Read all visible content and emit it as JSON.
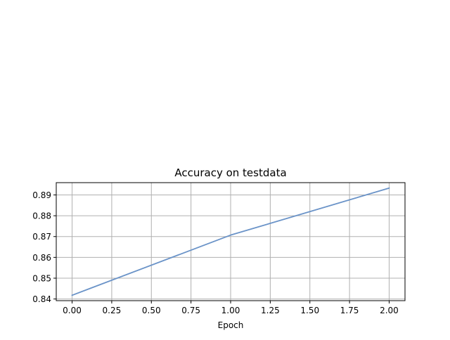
{
  "chart_data": {
    "type": "line",
    "title": "Accuracy on testdata",
    "xlabel": "Epoch",
    "ylabel": "",
    "x": [
      0,
      1,
      2
    ],
    "series": [
      {
        "values": [
          0.8418,
          0.8707,
          0.8933
        ]
      }
    ],
    "xlim": [
      -0.1,
      2.1
    ],
    "ylim": [
      0.8392,
      0.8959
    ],
    "xticks": [
      0.0,
      0.25,
      0.5,
      0.75,
      1.0,
      1.25,
      1.5,
      1.75,
      2.0
    ],
    "xtick_labels": [
      "0.00",
      "0.25",
      "0.50",
      "0.75",
      "1.00",
      "1.25",
      "1.50",
      "1.75",
      "2.00"
    ],
    "yticks": [
      0.84,
      0.85,
      0.86,
      0.87,
      0.88,
      0.89
    ],
    "ytick_labels": [
      "0.84",
      "0.85",
      "0.86",
      "0.87",
      "0.88",
      "0.89"
    ],
    "grid": true,
    "legend": "none",
    "colors": {
      "line": "#6a93c8",
      "grid": "#b0b0b0",
      "axis": "#000000"
    }
  }
}
